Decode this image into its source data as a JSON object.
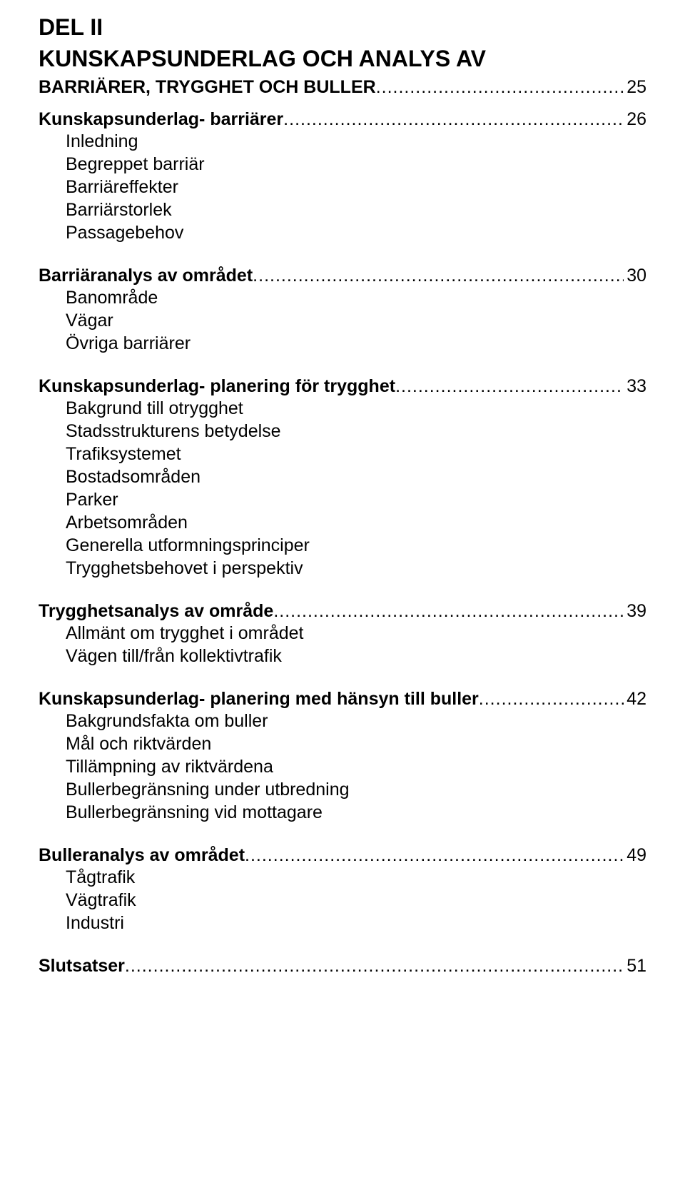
{
  "part": {
    "line1": "DEL II",
    "line2": "KUNSKAPSUNDERLAG OCH ANALYS AV",
    "line3_label": "BARRIÄRER, TRYGGHET OCH BULLER",
    "line3_page": "25"
  },
  "sections": [
    {
      "title": "Kunskapsunderlag- barriärer",
      "page": "26",
      "subs": [
        "Inledning",
        "Begreppet barriär",
        "Barriäreffekter",
        "Barriärstorlek",
        "Passagebehov"
      ]
    },
    {
      "title": "Barriäranalys av området",
      "page": "30",
      "subs": [
        "Banområde",
        "Vägar",
        "Övriga barriärer"
      ]
    },
    {
      "title": "Kunskapsunderlag- planering för trygghet",
      "page": "33",
      "subs": [
        "Bakgrund till otrygghet",
        "Stadsstrukturens betydelse",
        "Trafiksystemet",
        "Bostadsområden",
        "Parker",
        "Arbetsområden",
        "Generella utformningsprinciper",
        "Trygghetsbehovet i perspektiv"
      ]
    },
    {
      "title": "Trygghetsanalys av område",
      "page": "39",
      "subs": [
        "Allmänt om trygghet i området",
        "Vägen till/från kollektivtrafik"
      ]
    },
    {
      "title": "Kunskapsunderlag- planering med hänsyn till buller",
      "page": "42",
      "subs": [
        "Bakgrundsfakta om buller",
        "Mål och riktvärden",
        "Tillämpning av riktvärdena",
        "Bullerbegränsning under utbredning",
        "Bullerbegränsning vid mottagare"
      ]
    },
    {
      "title": "Bulleranalys av området",
      "page": "49",
      "subs": [
        "Tågtrafik",
        "Vägtrafik",
        "Industri"
      ]
    },
    {
      "title": "Slutsatser",
      "page": "51",
      "subs": []
    }
  ]
}
